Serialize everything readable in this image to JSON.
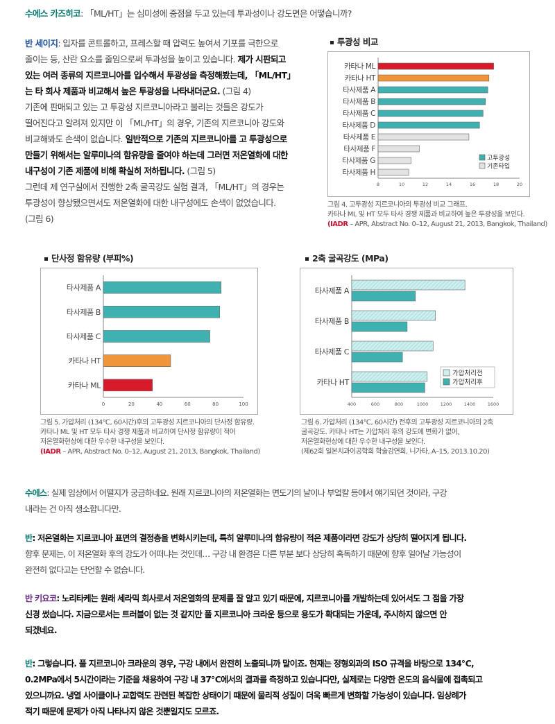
{
  "intro": {
    "speaker": "수에스 카즈히코",
    "text": ": 「ML/HT」는 심미성에 중점을 두고 있는데 투과성이나 강도면은 어떻습니까?"
  },
  "para_sage": {
    "speaker": "반 세이지",
    "lines": [
      ": 입자를 콘트롤하고, 프레스할 때 압력도 높여서 기포를 극한으로",
      "줄이는 등, 산란 요소를 줄임으로써 투과성을 높이고 있습니다.",
      "있는 여러 종류의 지르코니아를 입수해서 투광성을 측정해봤는데, 「ML/HT」",
      "는 타 회사 제품과 비교해서 높은 투광성을 나타내더군요.",
      "기존에 판매되고 있는 고 투광성 지르코니아라고 불리는 것들은 강도가",
      "떨어진다고 알려져 있지만 이 「ML/HT」의 경우, 기존의 지르코니아 강도와",
      "비교해봐도 손색이 없습니다.",
      "만들기 위해서는 알루미나의 함유량을 줄여야 하는데 그러면 저온열화에 대한",
      "내구성이 기존 제품에 비해 확실히 저하됩니다.",
      "그런데 제 연구실에서 진행한 2축 굴곡강도 실험 결과, 「ML/HT」의 경우는",
      "투광성이 향상됐으면서도 저온열화에 대한 내구성에도 손색이 없었습니다.",
      "(그림 6)"
    ],
    "bold1": " 제가 시판되고",
    "ref4": " (그림 4)",
    "bold2": " 일반적으로 기존의 지르코니아를 고 투광성으로",
    "ref5": " (그림 5)"
  },
  "fig4": {
    "title": "투광성 비교",
    "caption_lines": [
      "그림 4.  고투광성 지르코니아의 투광성 비교 그래프.",
      "카타나 ML 및 HT 모두 타사 경쟁 제품과 비교하여 높은 투광성을 보인다.",
      "– APR, Abstract No. 0–12, August 21, 2013, Bangkok, Thailand)"
    ],
    "iadr": "(IADR",
    "chart_data": {
      "type": "bar",
      "orientation": "horizontal",
      "categories": [
        "카타나 ML",
        "카타나 HT",
        "타사제품 A",
        "타사제품 B",
        "타사제품 C",
        "타사제품 D",
        "타사제품 E",
        "타사제품 F",
        "타사제품 G",
        "타사제품 H"
      ],
      "values": [
        17.8,
        17.4,
        17.3,
        17.1,
        16.9,
        16.6,
        15.7,
        11.5,
        10.8,
        10.6
      ],
      "groups": [
        "고투광성",
        "고투광성",
        "고투광성",
        "고투광성",
        "고투광성",
        "고투광성",
        "기존타입",
        "기존타입",
        "기존타입",
        "기존타입"
      ],
      "legend": [
        "고투광성",
        "기존타입"
      ],
      "xlim": [
        8,
        20
      ],
      "xticks": [
        "8",
        "10",
        "12",
        "14",
        "16",
        "18",
        "20"
      ],
      "colors": {
        "ML": "#d81b2a",
        "HT": "#f0953a",
        "high": "#3fb1b0",
        "conventional": "#e2e2e2"
      },
      "legend_position": "bottom-right"
    }
  },
  "fig5": {
    "title": "단사정 함유량 (부피%)",
    "caption_lines": [
      "그림 5.  가압처리 (134℃, 60시간)후의 고투광성 지르코니아의 단사정 함유량.",
      "카타나 ML 및 HT 모두 타사 경쟁 제품과 비교하여 단사정 함유량이 적어",
      "저온열화현상에 대한 우수한 내구성을 보인다.",
      "– APR, Abstract No. 0–12, August 21, 2013, Bangkok, Thailand)"
    ],
    "iadr": "(IADR",
    "chart_data": {
      "type": "bar",
      "orientation": "horizontal",
      "categories": [
        "타사제품 A",
        "타사제품 B",
        "타사제품 C",
        "카타나 HT",
        "카타나 ML"
      ],
      "values": [
        84,
        83,
        76,
        48,
        35
      ],
      "xlim": [
        0,
        100
      ],
      "xticks": [
        "0",
        "20",
        "40",
        "60",
        "80",
        "100"
      ],
      "colors": [
        "#3fb1b0",
        "#3fb1b0",
        "#3fb1b0",
        "#f0953a",
        "#d81b2a"
      ]
    }
  },
  "fig6": {
    "title": "2축 굴곡강도 (MPa)",
    "caption_lines": [
      "그림 6.  가압처리 (134℃, 60시간) 전후의 고투광성 지르코니아의 2축",
      "굴곡강도. 카타나 HT는 가압처리 후의 강도에 변화가 없어,",
      "저온열화현상에 대한 우수한 내구성을 보인다.",
      "(제62회 일본치과이공학회 학술강연회, 니가타, A–15, 2013.10.20)"
    ],
    "chart_data": {
      "type": "bar",
      "orientation": "horizontal",
      "categories": [
        "타사제품 A",
        "타사제품 B",
        "타사제품 C",
        "카타나 HT"
      ],
      "series": [
        {
          "name": "가압처리전",
          "values": [
            1360,
            1110,
            1090,
            1040
          ]
        },
        {
          "name": "가압처리후",
          "values": [
            940,
            870,
            830,
            1020
          ]
        }
      ],
      "xlim": [
        400,
        1600
      ],
      "xticks": [
        "400",
        "600",
        "800",
        "1000",
        "1200",
        "1400",
        "1600"
      ],
      "colors": {
        "before": "#cfeeee",
        "after": "#3fb1b0"
      },
      "legend_position": "bottom-right"
    }
  },
  "para_q2": {
    "speaker": "수에스",
    "lines": [
      ": 실제 임상에서 어떨지가 궁금하네요. 원래 지르코니아의 저온열화는 면도기의 날이나 부엌칼 등에서 얘기되던 것이라, 구강",
      "내라는 건 아직 생소합니다만."
    ]
  },
  "para_a2": {
    "speaker": "반",
    "bold_line": ": 저온열화는 지르코니아 표면의 결정층을 변화시키는데, 특히 알루미나의 함유량이 적은 제품이라면 강도가 상당히 떨어지게 됩니다.",
    "lines": [
      "향후 문제는, 이 저온열화 후의 강도가 어떠냐는 것인데… 구강 내 환경은 다른 부분 보다 상당히 혹독하기 때문에 향후 일어날 가능성이",
      "완전히 없다고는 단언할 수 없습니다."
    ]
  },
  "para_kiyoko": {
    "speaker": "반 키요코",
    "lines": [
      ": 노리타케는 원래 세라믹 회사로서 저온열화의 문제를 잘 알고 있기 때문에, 지르코니아를 개발하는데 있어서도 그 점을 가장",
      "신경 썼습니다. 지금으로서는 트러블이 없는 것 같지만 풀 지르코니아 크라운 등으로 용도가 확대되는 가운데, 주시하지 않으면 안",
      "되겠네요."
    ]
  },
  "para_a3": {
    "speaker": "반",
    "lines": [
      ": 그렇습니다. 풀 지르코니아 크라운의 경우, 구강 내에서 완전히 노출되니까 말이죠. 현재는 정형외과의 ISO 규격을 바탕으로 134℃,",
      "0.2MPa에서 5시간이라는 기준을 채용하여 구강 내 37℃에서의 결과를 측정하고 있습니다만, 실제로는 다양한 온도의 음식물에 접촉되고",
      "있으니까요. 냉열 사이클이나 교합력도 관련된 복잡한 상태이기 때문에 물리적 성질이 더욱 빠르게 변화할 가능성이 있습니다. 임상례가",
      "적기 때문에 문제가 아직 나타나지 않은 것뿐일지도 모르죠."
    ]
  }
}
